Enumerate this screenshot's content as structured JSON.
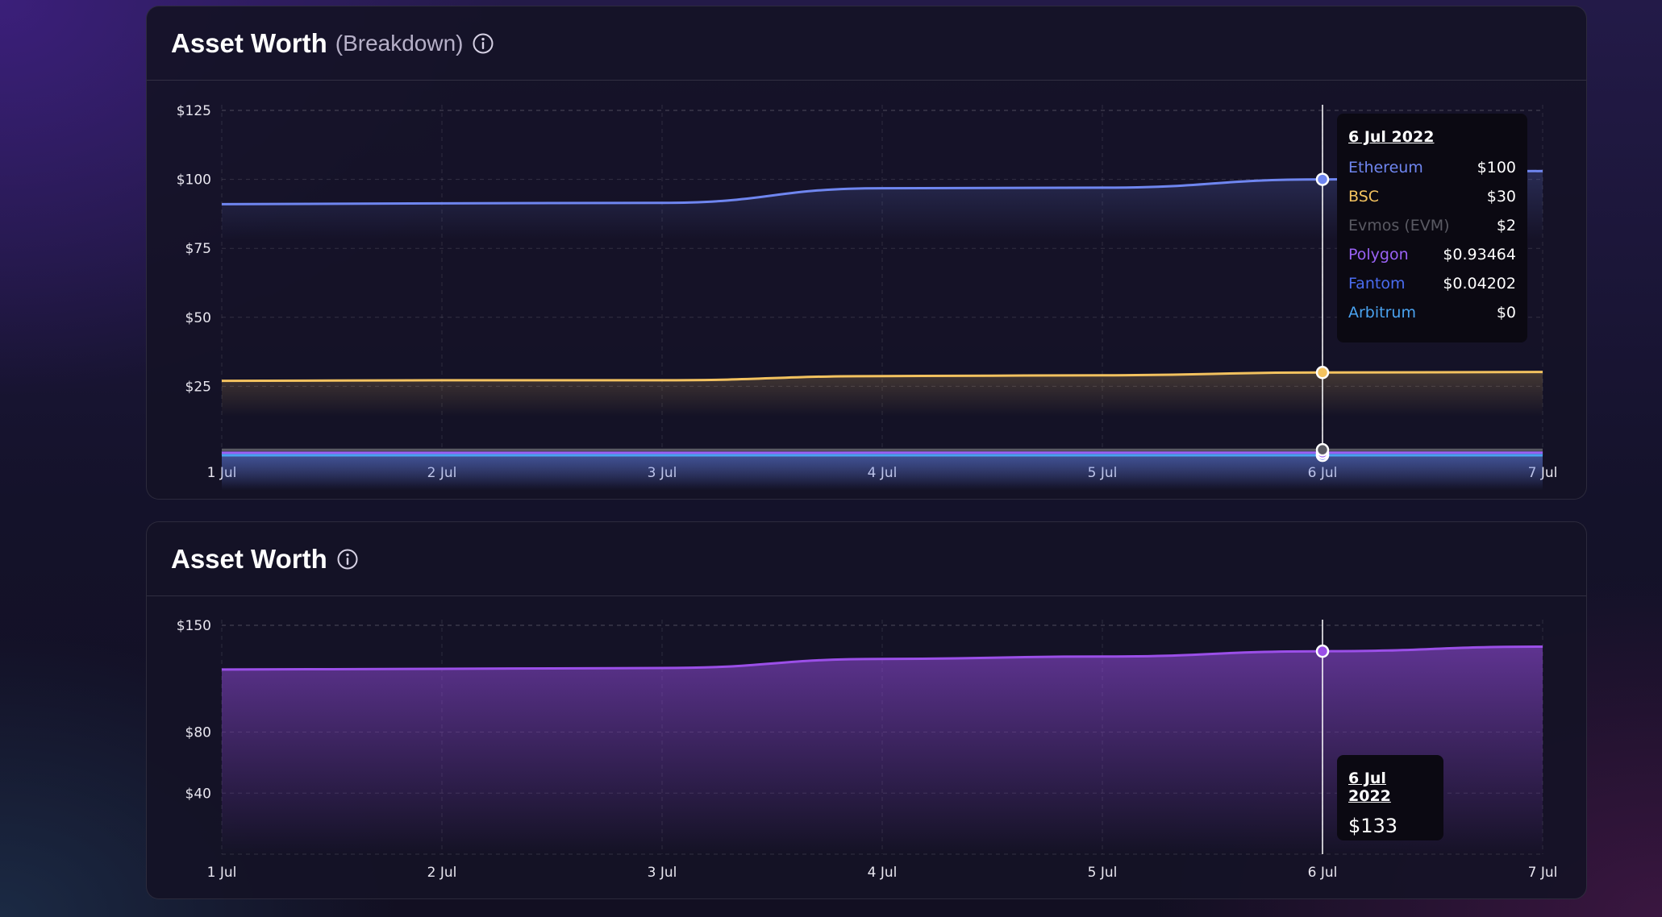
{
  "colors": {
    "ethereum": "#6f86f0",
    "bsc": "#f3c25f",
    "evmos": "#5a5a63",
    "polygon": "#9a62f5",
    "fantom": "#4a6cf0",
    "arbitrum": "#4aa3f0",
    "total": "#9b4fe8"
  },
  "icons": {
    "info": "info-circle-icon"
  },
  "breakdown": {
    "title": "Asset Worth",
    "subtitle": "(Breakdown)",
    "tooltip": {
      "date": "6 Jul 2022",
      "rows": [
        {
          "name": "Ethereum",
          "value": "$100"
        },
        {
          "name": "BSC",
          "value": "$30"
        },
        {
          "name": "Evmos (EVM)",
          "value": "$2"
        },
        {
          "name": "Polygon",
          "value": "$0.93464"
        },
        {
          "name": "Fantom",
          "value": "$0.04202"
        },
        {
          "name": "Arbitrum",
          "value": "$0"
        }
      ]
    }
  },
  "total": {
    "title": "Asset Worth",
    "tooltip": {
      "date": "6 Jul 2022",
      "value": "$133"
    }
  },
  "chart_data": [
    {
      "type": "line",
      "title": "Asset Worth",
      "subtitle": "(Breakdown)",
      "x": [
        "1 Jul",
        "2 Jul",
        "3 Jul",
        "4 Jul",
        "5 Jul",
        "6 Jul",
        "7 Jul"
      ],
      "yticks": [
        {
          "value": 125,
          "label": "$125"
        },
        {
          "value": 100,
          "label": "$100"
        },
        {
          "value": 75,
          "label": "$75"
        },
        {
          "value": 50,
          "label": "$50"
        },
        {
          "value": 25,
          "label": "$25"
        }
      ],
      "ylim": [
        0,
        125
      ],
      "grid": true,
      "highlight_x": "6 Jul",
      "series": [
        {
          "name": "Ethereum",
          "color": "#6f86f0",
          "values": [
            91,
            91.3,
            91.5,
            96.8,
            97,
            100,
            103
          ]
        },
        {
          "name": "BSC",
          "color": "#f3c25f",
          "values": [
            27,
            27.2,
            27.2,
            28.7,
            29,
            30,
            30.2
          ]
        },
        {
          "name": "Evmos (EVM)",
          "color": "#5a5a63",
          "values": [
            2,
            2,
            2,
            2,
            2,
            2,
            2
          ]
        },
        {
          "name": "Polygon",
          "color": "#9a62f5",
          "values": [
            0.9,
            0.9,
            0.9,
            0.93,
            0.93,
            0.93464,
            0.94
          ]
        },
        {
          "name": "Fantom",
          "color": "#4a6cf0",
          "values": [
            0.04,
            0.04,
            0.04,
            0.042,
            0.042,
            0.04202,
            0.042
          ]
        },
        {
          "name": "Arbitrum",
          "color": "#4aa3f0",
          "values": [
            0,
            0,
            0,
            0,
            0,
            0,
            0
          ]
        }
      ]
    },
    {
      "type": "area",
      "title": "Asset Worth",
      "x": [
        "1 Jul",
        "2 Jul",
        "3 Jul",
        "4 Jul",
        "5 Jul",
        "6 Jul",
        "7 Jul"
      ],
      "yticks": [
        {
          "value": 150,
          "label": "$150"
        },
        {
          "value": 80,
          "label": "$80"
        },
        {
          "value": 40,
          "label": "$40"
        }
      ],
      "ylim": [
        0,
        150
      ],
      "grid": true,
      "highlight_x": "6 Jul",
      "series": [
        {
          "color": "#9b4fe8",
          "values": [
            121,
            121.5,
            122,
            128,
            129.5,
            133,
            136
          ]
        }
      ]
    }
  ]
}
